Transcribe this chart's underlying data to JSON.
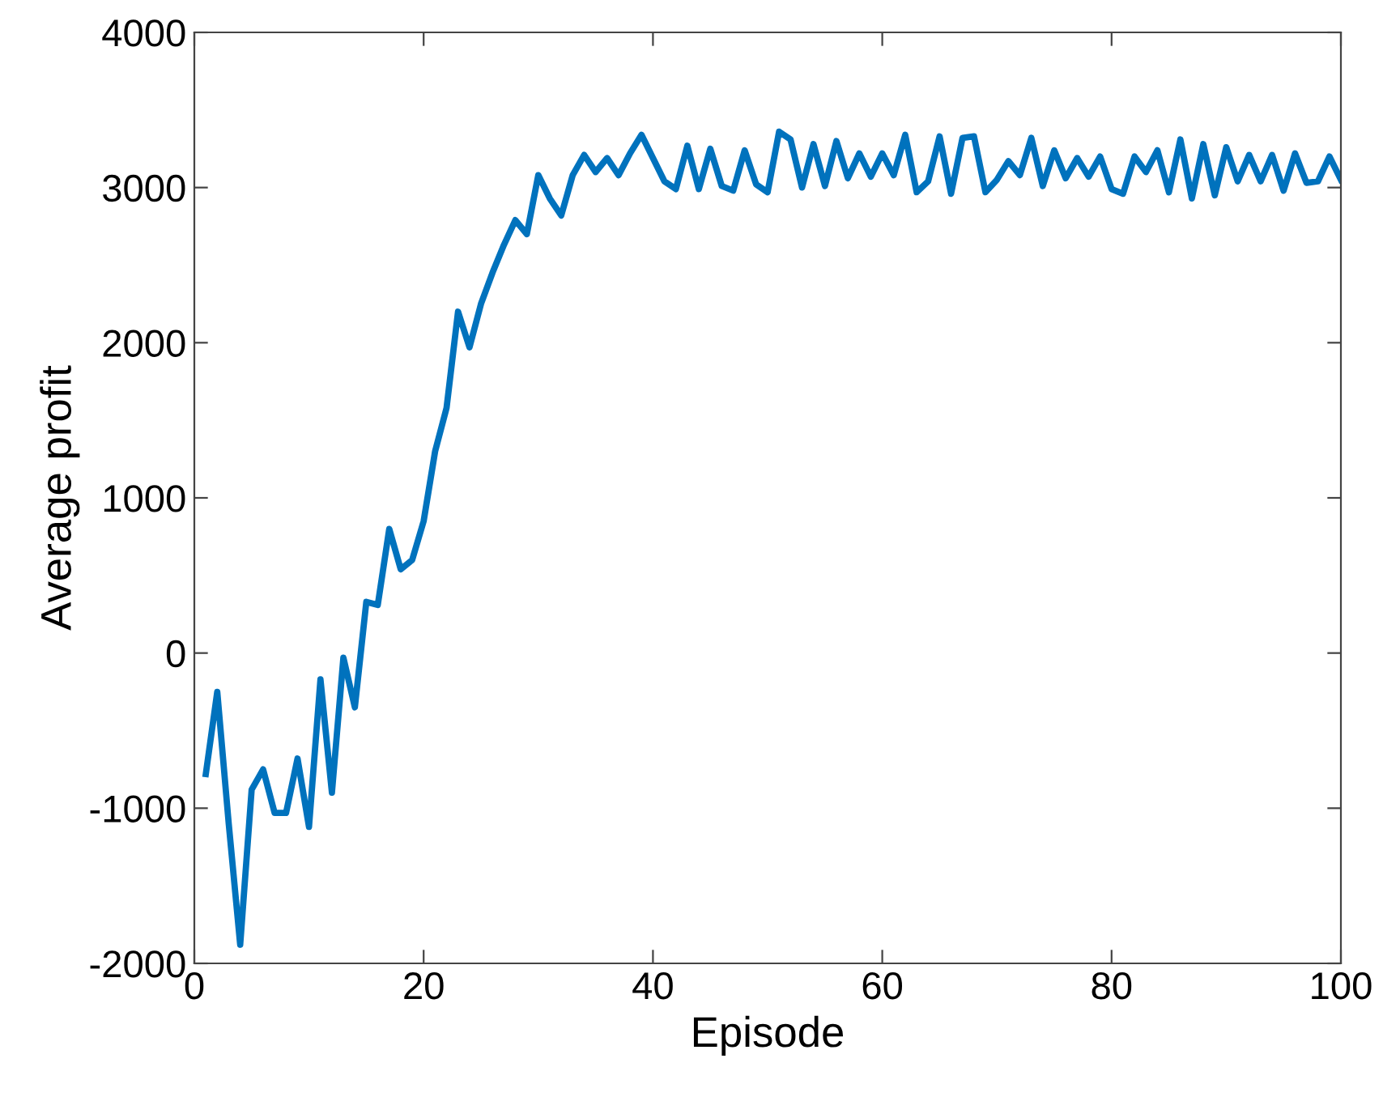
{
  "chart_data": {
    "type": "line",
    "xlabel": "Episode",
    "ylabel": "Average profit",
    "x": [
      1,
      2,
      3,
      4,
      5,
      6,
      7,
      8,
      9,
      10,
      11,
      12,
      13,
      14,
      15,
      16,
      17,
      18,
      19,
      20,
      21,
      22,
      23,
      24,
      25,
      26,
      27,
      28,
      29,
      30,
      31,
      32,
      33,
      34,
      35,
      36,
      37,
      38,
      39,
      40,
      41,
      42,
      43,
      44,
      45,
      46,
      47,
      48,
      49,
      50,
      51,
      52,
      53,
      54,
      55,
      56,
      57,
      58,
      59,
      60,
      61,
      62,
      63,
      64,
      65,
      66,
      67,
      68,
      69,
      70,
      71,
      72,
      73,
      74,
      75,
      76,
      77,
      78,
      79,
      80,
      81,
      82,
      83,
      84,
      85,
      86,
      87,
      88,
      89,
      90,
      91,
      92,
      93,
      94,
      95,
      96,
      97,
      98,
      99,
      100
    ],
    "series": [
      {
        "color": "#0072bd",
        "values": [
          -780,
          -250,
          -1100,
          -1880,
          -880,
          -750,
          -1030,
          -1030,
          -680,
          -1120,
          -170,
          -900,
          -30,
          -350,
          330,
          310,
          800,
          540,
          600,
          850,
          1300,
          1580,
          2200,
          1970,
          2250,
          2450,
          2630,
          2790,
          2700,
          3080,
          2930,
          2820,
          3080,
          3210,
          3100,
          3190,
          3080,
          3220,
          3340,
          3190,
          3040,
          2990,
          3270,
          2990,
          3250,
          3010,
          2980,
          3240,
          3020,
          2970,
          3360,
          3310,
          3000,
          3280,
          3010,
          3300,
          3060,
          3220,
          3070,
          3220,
          3080,
          3340,
          2970,
          3040,
          3330,
          2960,
          3320,
          3330,
          2970,
          3050,
          3170,
          3080,
          3320,
          3010,
          3240,
          3060,
          3190,
          3070,
          3200,
          2990,
          2960,
          3200,
          3100,
          3240,
          2970,
          3310,
          2930,
          3280,
          2950,
          3260,
          3040,
          3210,
          3040,
          3210,
          2980,
          3220,
          3030,
          3040,
          3200,
          3050
        ]
      }
    ],
    "xlim": [
      0,
      100
    ],
    "xticks": [
      0,
      20,
      40,
      60,
      80,
      100
    ],
    "ylim": [
      -2000,
      4000
    ],
    "yticks": [
      -2000,
      -1000,
      0,
      1000,
      2000,
      3000,
      4000
    ],
    "grid": false,
    "legend": false,
    "marker": "none",
    "line_style": "solid"
  }
}
